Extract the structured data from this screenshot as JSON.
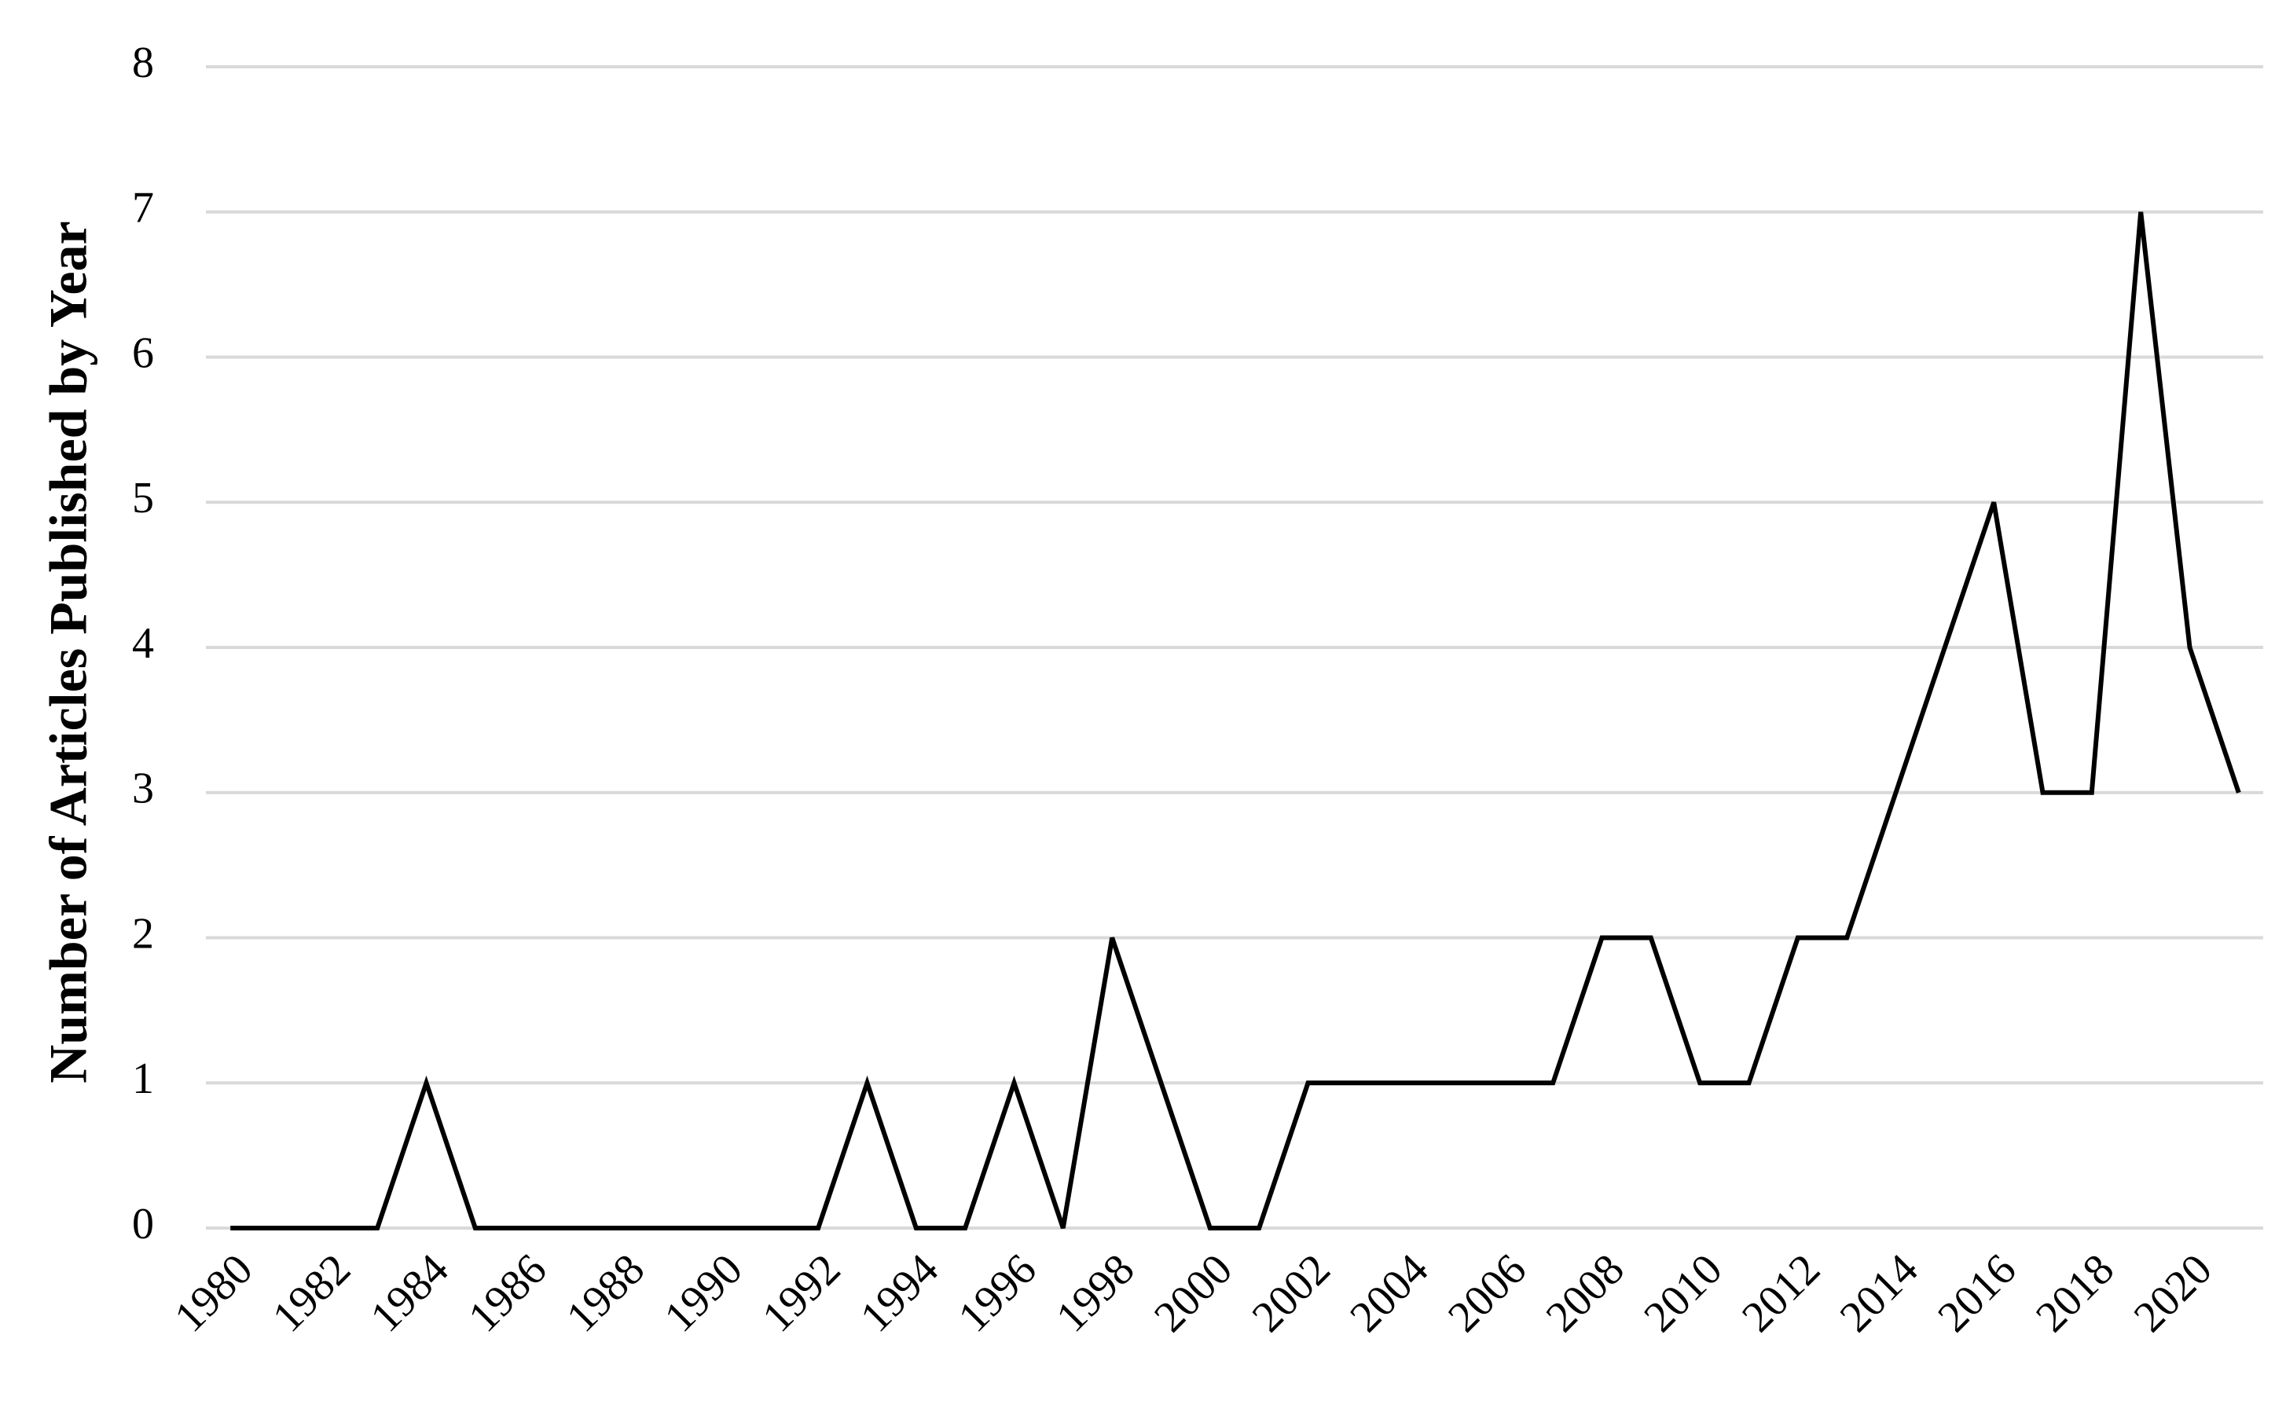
{
  "chart_data": {
    "type": "line",
    "y_label": "Number of Articles Published by Year",
    "x": [
      1980,
      1981,
      1982,
      1983,
      1984,
      1985,
      1986,
      1987,
      1988,
      1989,
      1990,
      1991,
      1992,
      1993,
      1994,
      1995,
      1996,
      1997,
      1998,
      1999,
      2000,
      2001,
      2002,
      2003,
      2004,
      2005,
      2006,
      2007,
      2008,
      2009,
      2010,
      2011,
      2012,
      2013,
      2014,
      2015,
      2016,
      2017,
      2018,
      2019,
      2020,
      2021
    ],
    "values": [
      0,
      0,
      0,
      0,
      1,
      0,
      0,
      0,
      0,
      0,
      0,
      0,
      0,
      1,
      0,
      0,
      1,
      0,
      2,
      1,
      0,
      0,
      1,
      1,
      1,
      1,
      1,
      1,
      2,
      2,
      1,
      1,
      2,
      2,
      3,
      4,
      5,
      3,
      3,
      7,
      4,
      3
    ],
    "color": "#000000",
    "xlim": [
      1979.5,
      2021.5
    ],
    "xticks": [
      1980,
      1982,
      1984,
      1986,
      1988,
      1990,
      1992,
      1994,
      1996,
      1998,
      2000,
      2002,
      2004,
      2006,
      2008,
      2010,
      2012,
      2014,
      2016,
      2018,
      2020
    ],
    "ylim": [
      0,
      8
    ],
    "yticks": [
      0,
      1,
      2,
      3,
      4,
      5,
      6,
      7,
      8
    ],
    "grid": true
  }
}
